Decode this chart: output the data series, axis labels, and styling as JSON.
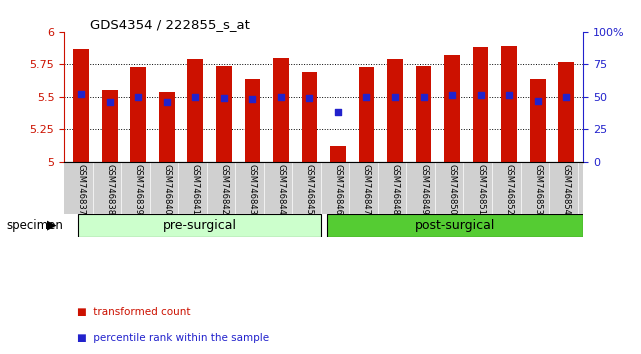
{
  "title": "GDS4354 / 222855_s_at",
  "samples": [
    "GSM746837",
    "GSM746838",
    "GSM746839",
    "GSM746840",
    "GSM746841",
    "GSM746842",
    "GSM746843",
    "GSM746844",
    "GSM746845",
    "GSM746846",
    "GSM746847",
    "GSM746848",
    "GSM746849",
    "GSM746850",
    "GSM746851",
    "GSM746852",
    "GSM746853",
    "GSM746854"
  ],
  "bar_values": [
    5.87,
    5.55,
    5.73,
    5.54,
    5.79,
    5.74,
    5.64,
    5.8,
    5.69,
    5.12,
    5.73,
    5.79,
    5.74,
    5.82,
    5.88,
    5.89,
    5.64,
    5.77
  ],
  "percentile_values": [
    5.52,
    5.46,
    5.5,
    5.46,
    5.5,
    5.49,
    5.48,
    5.5,
    5.49,
    5.38,
    5.5,
    5.5,
    5.5,
    5.51,
    5.51,
    5.51,
    5.47,
    5.5
  ],
  "ymin": 5.0,
  "ymax": 6.0,
  "yticks_left": [
    5.0,
    5.25,
    5.5,
    5.75,
    6.0
  ],
  "ytick_labels_left": [
    "5",
    "5.25",
    "5.5",
    "5.75",
    "6"
  ],
  "bar_color": "#cc1100",
  "dot_color": "#2222cc",
  "bar_width": 0.55,
  "groups": [
    {
      "label": "pre-surgical",
      "start": 0,
      "end": 9,
      "color": "#ccffcc"
    },
    {
      "label": "post-surgical",
      "start": 9,
      "end": 18,
      "color": "#55cc33"
    }
  ],
  "xlabel": "specimen",
  "legend": [
    {
      "label": "transformed count",
      "color": "#cc1100"
    },
    {
      "label": "percentile rank within the sample",
      "color": "#2222cc"
    }
  ],
  "right_yticks": [
    0,
    25,
    50,
    75,
    100
  ],
  "right_yticklabels": [
    "0",
    "25",
    "50",
    "75",
    "100%"
  ],
  "bg_color": "#ffffff",
  "tick_label_area_color": "#d0d0d0",
  "grid_lines": [
    5.25,
    5.5,
    5.75
  ]
}
